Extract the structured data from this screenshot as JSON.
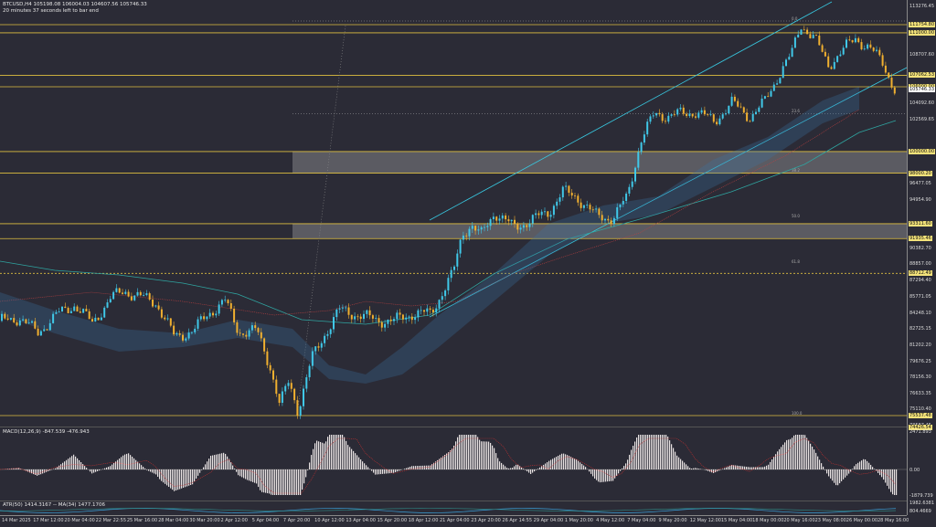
{
  "header": {
    "symbol_line": "BTCUSD,H4  105198.08 106004.03 104607.56 105746.33",
    "timer_line": "20 minutes 37 seconds left to bar end"
  },
  "indicators": {
    "macd_label": "MACD(12,26,9) -847.539 -476.943",
    "atr_label": "ATR(50) 1414.3167 -- MA(34) 1477.1706"
  },
  "price_axis": {
    "ticks": [
      "113276.45",
      "108707.60",
      "104092.60",
      "102569.65",
      "99523.75",
      "96477.05",
      "94954.90",
      "90382.70",
      "88857.00",
      "87294.40",
      "85771.05",
      "84248.10",
      "82725.15",
      "81202.20",
      "79676.25",
      "78156.30",
      "76633.35",
      "75110.40",
      "73587.45"
    ],
    "badges": [
      "111754.80",
      "111000.00",
      "107062.53",
      "106000.00",
      "100000.00",
      "98000.20",
      "93311.60",
      "91935.46",
      "88712.49",
      "75537.48",
      "74426.54"
    ],
    "current_price": "105746.33"
  },
  "macd_axis": {
    "ticks": [
      "2471.893",
      "0.00",
      "-1879.739"
    ]
  },
  "atr_axis": {
    "ticks": [
      "1982.6381",
      "804.4669"
    ]
  },
  "time_axis": {
    "labels": [
      "14 Mar 2025",
      "17 Mar 12:00",
      "20 Mar 04:00",
      "22 Mar 22:55",
      "25 Mar 16:00",
      "28 Mar 04:00",
      "30 Mar 20:00",
      "2 Apr 12:00",
      "5 Apr 04:00",
      "7 Apr 20:00",
      "10 Apr 12:00",
      "13 Apr 04:00",
      "15 Apr 20:00",
      "18 Apr 12:00",
      "21 Apr 04:00",
      "23 Apr 20:00",
      "26 Apr 14:55",
      "29 Apr 04:00",
      "1 May 20:00",
      "4 May 12:00",
      "7 May 04:00",
      "9 May 20:00",
      "12 May 12:00",
      "15 May 04:00",
      "18 May 00:00",
      "20 May 16:00",
      "23 May 08:00",
      "26 May 00:00",
      "28 May 16:00"
    ]
  },
  "fib_labels": [
    "0.0",
    "23.6",
    "38.2",
    "50.0",
    "61.8",
    "100.0"
  ],
  "colors": {
    "background": "#2b2b36",
    "bull_candle": "#40c8e8",
    "bear_candle": "#f0b030",
    "level_line": "#e0c040",
    "channel": "#38c8e0",
    "zone": "#b4b4b4"
  }
}
